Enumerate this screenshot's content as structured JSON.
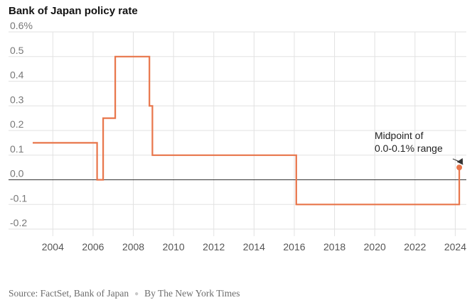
{
  "title": "Bank of Japan policy rate",
  "footer": {
    "source": "Source: FactSet, Bank of Japan",
    "credit": "By The New York Times"
  },
  "colors": {
    "line": "#e8754a",
    "grid": "#e2e2e2",
    "zero_line": "#333333"
  },
  "chart_data": {
    "type": "line",
    "title": "Bank of Japan policy rate",
    "xlabel": "",
    "ylabel": "",
    "xlim": [
      2003,
      2024.55
    ],
    "ylim": [
      -0.2,
      0.6
    ],
    "y_ticks": [
      {
        "value": 0.6,
        "label": "0.6%"
      },
      {
        "value": 0.5,
        "label": "0.5"
      },
      {
        "value": 0.4,
        "label": "0.4"
      },
      {
        "value": 0.3,
        "label": "0.3"
      },
      {
        "value": 0.2,
        "label": "0.2"
      },
      {
        "value": 0.1,
        "label": "0.1"
      },
      {
        "value": 0.0,
        "label": "0.0"
      },
      {
        "value": -0.1,
        "label": "-0.1"
      },
      {
        "value": -0.2,
        "label": "-0.2"
      }
    ],
    "x_ticks": [
      {
        "value": 2004,
        "label": "2004"
      },
      {
        "value": 2006,
        "label": "2006"
      },
      {
        "value": 2008,
        "label": "2008"
      },
      {
        "value": 2010,
        "label": "2010"
      },
      {
        "value": 2012,
        "label": "2012"
      },
      {
        "value": 2014,
        "label": "2014"
      },
      {
        "value": 2016,
        "label": "2016"
      },
      {
        "value": 2018,
        "label": "2018"
      },
      {
        "value": 2020,
        "label": "2020"
      },
      {
        "value": 2022,
        "label": "2022"
      },
      {
        "value": 2024,
        "label": "2024"
      }
    ],
    "grid": true,
    "series": [
      {
        "x": [
          2003.0,
          2006.2,
          2006.2,
          2006.5,
          2006.5,
          2007.1,
          2007.1,
          2008.8,
          2008.8,
          2008.95,
          2008.95,
          2016.1,
          2016.1,
          2024.2,
          2024.2
        ],
        "y": [
          0.15,
          0.15,
          0.0,
          0.0,
          0.25,
          0.25,
          0.5,
          0.5,
          0.3,
          0.3,
          0.1,
          0.1,
          -0.1,
          -0.1,
          0.05
        ]
      }
    ],
    "highlight_point": {
      "x": 2024.2,
      "y": 0.05
    },
    "annotation": {
      "lines": [
        "Midpoint of",
        "0.0-0.1% range"
      ]
    }
  }
}
